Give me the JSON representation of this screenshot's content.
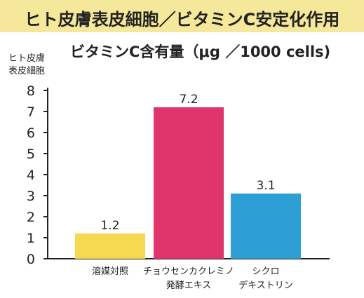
{
  "title": "ヒト皮膚表皮細胞／ビタミンC安定化作用",
  "subtitle": "ビタミンC含有量（μg ／1000 cells)",
  "colors": {
    "title_band": "#f6e89a",
    "axis": "#222222",
    "bars": [
      "#f5d94e",
      "#e0356c",
      "#2e9fd4"
    ]
  },
  "chart_data": {
    "type": "bar",
    "ylabel_lines": [
      "ヒト皮膚",
      "表皮細胞"
    ],
    "ylim": [
      0,
      8
    ],
    "yticks": [
      "0",
      "1",
      "2",
      "3",
      "4",
      "5",
      "6",
      "7",
      "8"
    ],
    "grid": false,
    "categories": [
      [
        "溶媒対照"
      ],
      [
        "チョウセンカクレミノ",
        "発酵エキス"
      ],
      [
        "シクロ",
        "デキストリン"
      ]
    ],
    "values": [
      1.2,
      7.2,
      3.1
    ],
    "value_labels": [
      "1.2",
      "7.2",
      "3.1"
    ]
  }
}
